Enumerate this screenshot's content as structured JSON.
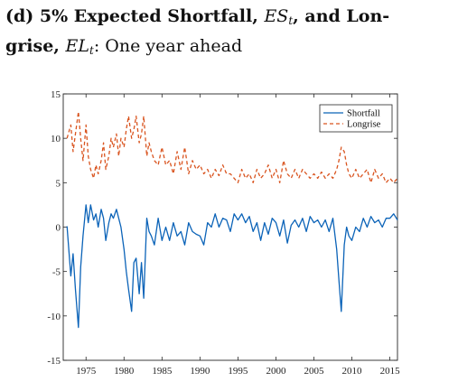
{
  "caption": {
    "prefix": "(d) 5% Expected Shortfall, ",
    "es_symbol": "ES",
    "es_sub": "t",
    "middle": ", and Lon-",
    "line2_prefix": "grise, ",
    "el_symbol": "EL",
    "el_sub": "t",
    "suffix": ": One year ahead"
  },
  "chart_data": {
    "type": "line",
    "title": "",
    "xlabel": "",
    "ylabel": "",
    "xlim": [
      1972,
      2016
    ],
    "ylim": [
      -15,
      15
    ],
    "xticks": [
      1975,
      1980,
      1985,
      1990,
      1995,
      2000,
      2005,
      2010,
      2015
    ],
    "yticks": [
      -15,
      -10,
      -5,
      0,
      5,
      10,
      15
    ],
    "grid": false,
    "legend_position": "top-right",
    "series": [
      {
        "name": "Shortfall",
        "color": "#0b63b8",
        "dash": "solid",
        "x": [
          1972.5,
          1973.0,
          1973.3,
          1973.6,
          1974.0,
          1974.3,
          1974.6,
          1975.0,
          1975.3,
          1975.6,
          1976.0,
          1976.3,
          1976.6,
          1977.0,
          1977.3,
          1977.6,
          1978.0,
          1978.3,
          1978.6,
          1979.0,
          1979.3,
          1979.6,
          1980.0,
          1980.3,
          1980.6,
          1981.0,
          1981.3,
          1981.6,
          1982.0,
          1982.3,
          1982.6,
          1983.0,
          1983.3,
          1983.6,
          1984.0,
          1984.5,
          1985.0,
          1985.5,
          1986.0,
          1986.5,
          1987.0,
          1987.5,
          1988.0,
          1988.5,
          1989.0,
          1989.5,
          1990.0,
          1990.5,
          1991.0,
          1991.5,
          1992.0,
          1992.5,
          1993.0,
          1993.5,
          1994.0,
          1994.5,
          1995.0,
          1995.5,
          1996.0,
          1996.5,
          1997.0,
          1997.5,
          1998.0,
          1998.5,
          1999.0,
          1999.5,
          2000.0,
          2000.5,
          2001.0,
          2001.5,
          2002.0,
          2002.5,
          2003.0,
          2003.5,
          2004.0,
          2004.5,
          2005.0,
          2005.5,
          2006.0,
          2006.5,
          2007.0,
          2007.5,
          2008.0,
          2008.3,
          2008.6,
          2009.0,
          2009.3,
          2009.6,
          2010.0,
          2010.5,
          2011.0,
          2011.5,
          2012.0,
          2012.5,
          2013.0,
          2013.5,
          2014.0,
          2014.5,
          2015.0,
          2015.5,
          2016.0
        ],
        "values": [
          0.1,
          -5.5,
          -3.0,
          -7.0,
          -11.3,
          -4.5,
          -1.0,
          2.5,
          0.5,
          2.5,
          0.8,
          1.5,
          0.0,
          2.0,
          1.0,
          -1.5,
          0.5,
          1.5,
          1.0,
          2.0,
          1.0,
          0.0,
          -2.5,
          -5.0,
          -7.0,
          -9.5,
          -4.0,
          -3.5,
          -7.5,
          -4.0,
          -8.0,
          1.0,
          -0.5,
          -1.0,
          -2.0,
          1.0,
          -1.5,
          0.0,
          -1.5,
          0.5,
          -1.0,
          -0.5,
          -2.0,
          0.5,
          -0.5,
          -0.8,
          -1.0,
          -2.0,
          0.5,
          0.0,
          1.5,
          0.0,
          1.0,
          0.8,
          -0.5,
          1.5,
          0.8,
          1.5,
          0.5,
          1.2,
          -0.5,
          0.5,
          -1.5,
          0.5,
          -0.8,
          1.0,
          0.5,
          -1.0,
          0.8,
          -1.8,
          0.2,
          0.8,
          0.0,
          1.0,
          -0.5,
          1.2,
          0.5,
          0.8,
          0.0,
          0.8,
          -0.5,
          1.0,
          -2.5,
          -6.0,
          -9.5,
          -2.0,
          0.0,
          -1.0,
          -1.5,
          0.0,
          -0.5,
          1.0,
          0.0,
          1.2,
          0.5,
          0.8,
          0.0,
          1.0,
          1.0,
          1.5,
          0.8
        ]
      },
      {
        "name": "Longrise",
        "color": "#d9541f",
        "dash": "dashed",
        "x": [
          1972.5,
          1973.0,
          1973.3,
          1973.6,
          1974.0,
          1974.3,
          1974.6,
          1975.0,
          1975.3,
          1975.6,
          1976.0,
          1976.3,
          1976.6,
          1977.0,
          1977.3,
          1977.6,
          1978.0,
          1978.3,
          1978.6,
          1979.0,
          1979.3,
          1979.6,
          1980.0,
          1980.3,
          1980.6,
          1981.0,
          1981.3,
          1981.6,
          1982.0,
          1982.3,
          1982.6,
          1983.0,
          1983.3,
          1983.6,
          1984.0,
          1984.5,
          1985.0,
          1985.5,
          1986.0,
          1986.5,
          1987.0,
          1987.5,
          1988.0,
          1988.5,
          1989.0,
          1989.5,
          1990.0,
          1990.5,
          1991.0,
          1991.5,
          1992.0,
          1992.5,
          1993.0,
          1993.5,
          1994.0,
          1994.5,
          1995.0,
          1995.5,
          1996.0,
          1996.5,
          1997.0,
          1997.5,
          1998.0,
          1998.5,
          1999.0,
          1999.5,
          2000.0,
          2000.5,
          2001.0,
          2001.5,
          2002.0,
          2002.5,
          2003.0,
          2003.5,
          2004.0,
          2004.5,
          2005.0,
          2005.5,
          2006.0,
          2006.5,
          2007.0,
          2007.5,
          2008.0,
          2008.3,
          2008.6,
          2009.0,
          2009.3,
          2009.6,
          2010.0,
          2010.5,
          2011.0,
          2011.5,
          2012.0,
          2012.5,
          2013.0,
          2013.5,
          2014.0,
          2014.5,
          2015.0,
          2015.5,
          2016.0
        ],
        "values": [
          10.0,
          11.5,
          8.5,
          10.5,
          13.0,
          10.0,
          7.5,
          11.5,
          8.0,
          6.5,
          5.5,
          7.0,
          6.0,
          7.5,
          9.5,
          6.5,
          8.0,
          10.0,
          9.0,
          10.5,
          8.0,
          10.0,
          9.0,
          11.0,
          12.5,
          10.0,
          11.0,
          12.5,
          9.5,
          10.5,
          12.5,
          8.0,
          9.5,
          8.5,
          7.5,
          7.0,
          9.0,
          7.0,
          7.5,
          6.0,
          8.5,
          6.5,
          9.0,
          6.0,
          7.5,
          6.5,
          7.0,
          6.0,
          6.5,
          5.5,
          6.5,
          5.8,
          7.0,
          6.0,
          6.0,
          5.5,
          5.0,
          6.5,
          5.5,
          6.0,
          5.0,
          6.5,
          5.5,
          6.0,
          7.0,
          5.5,
          6.5,
          5.0,
          7.5,
          6.0,
          5.5,
          6.5,
          5.5,
          6.5,
          6.0,
          5.5,
          6.0,
          5.5,
          6.2,
          5.5,
          6.0,
          5.5,
          6.5,
          7.5,
          9.0,
          8.5,
          7.0,
          6.0,
          5.5,
          6.5,
          5.5,
          6.0,
          6.5,
          5.0,
          6.5,
          5.5,
          6.0,
          5.0,
          5.5,
          5.0,
          5.5
        ]
      }
    ]
  }
}
